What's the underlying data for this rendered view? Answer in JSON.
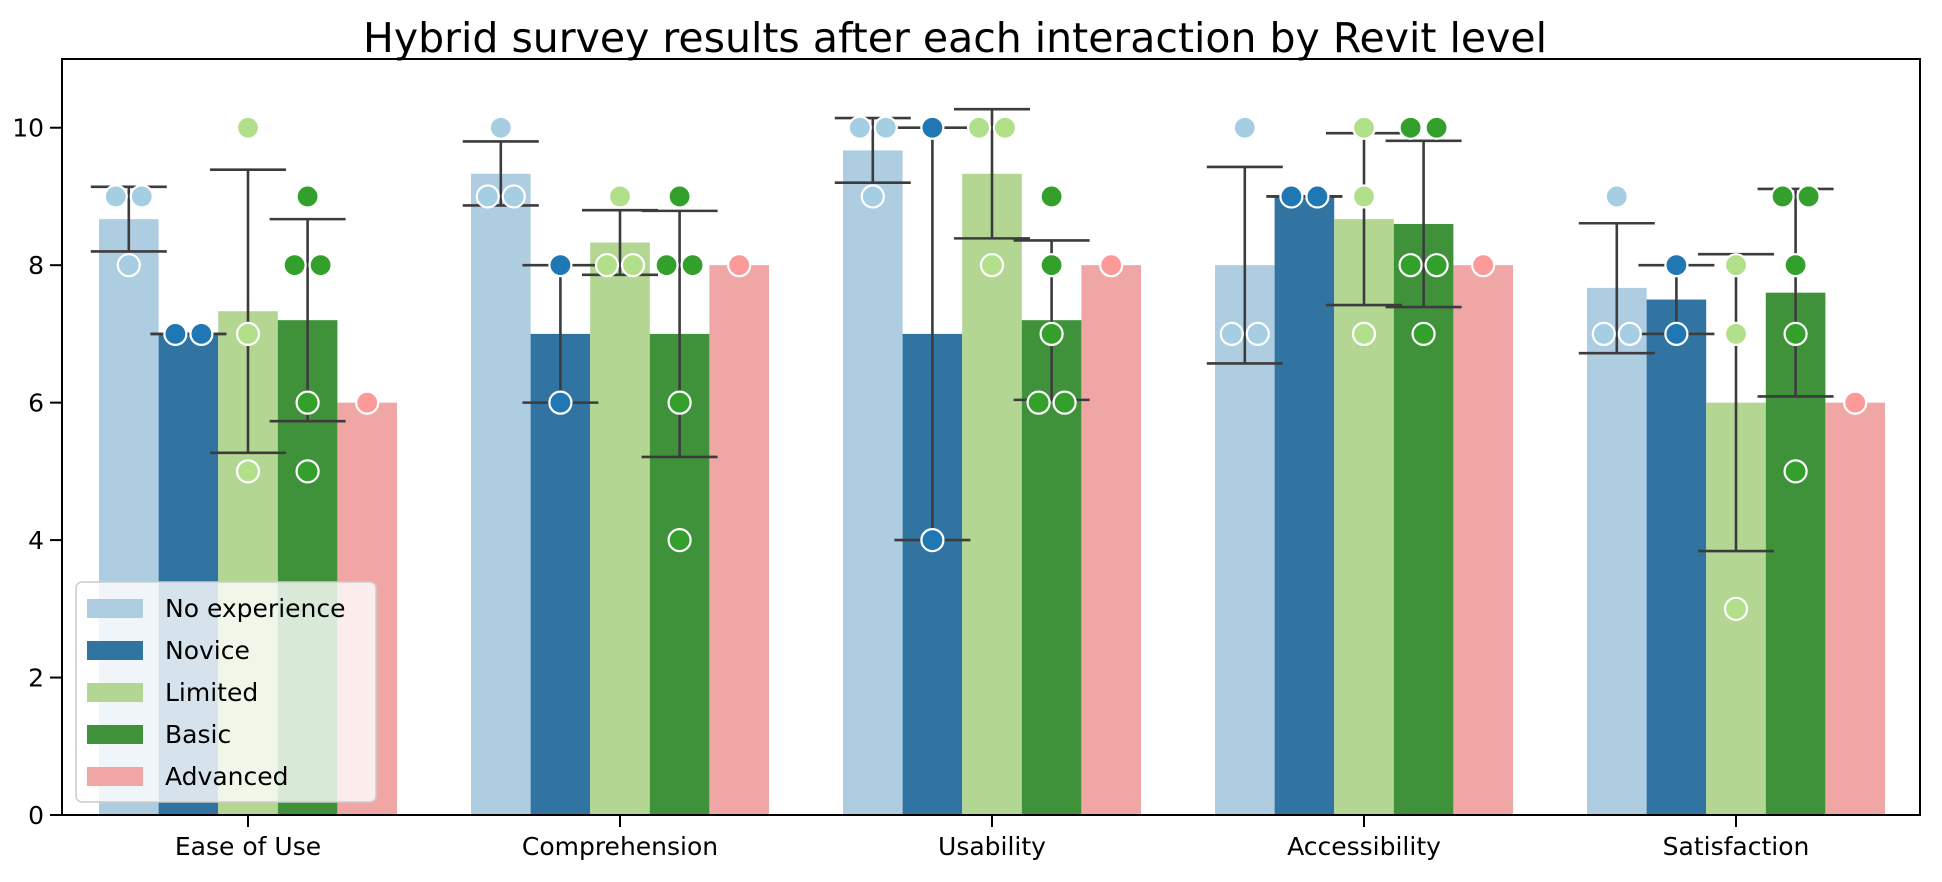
{
  "chart_data": {
    "type": "bar",
    "title": "Hybrid survey results after each interaction by Revit level",
    "xlabel": "",
    "ylabel": "",
    "ylim": [
      0,
      11
    ],
    "yticks": [
      0,
      2,
      4,
      6,
      8,
      10
    ],
    "categories": [
      "Ease of Use",
      "Comprehension",
      "Usability",
      "Accessibility",
      "Satisfaction"
    ],
    "legend_position": "lower-left",
    "series": [
      {
        "name": "No experience",
        "color": "#aecde1",
        "point_color": "#a6cee3",
        "values": [
          8.67,
          9.33,
          9.67,
          8.0,
          7.67
        ],
        "error_low": [
          8.2,
          8.87,
          9.2,
          6.57,
          6.72
        ],
        "error_high": [
          9.14,
          9.8,
          10.14,
          9.43,
          8.61
        ],
        "points": [
          [
            9,
            9,
            8
          ],
          [
            9,
            9,
            10
          ],
          [
            10,
            10,
            9
          ],
          [
            7,
            7,
            10
          ],
          [
            7,
            7,
            9
          ]
        ]
      },
      {
        "name": "Novice",
        "color": "#3274a1",
        "point_color": "#1f78b4",
        "values": [
          7.0,
          7.0,
          7.0,
          9.0,
          7.5
        ],
        "error_low": [
          7.0,
          6.0,
          4.0,
          9.0,
          7.0
        ],
        "error_high": [
          7.0,
          8.0,
          10.0,
          9.0,
          8.0
        ],
        "points": [
          [
            7,
            7
          ],
          [
            8,
            6
          ],
          [
            10,
            4
          ],
          [
            9,
            9
          ],
          [
            8,
            7
          ]
        ]
      },
      {
        "name": "Limited",
        "color": "#b3d693",
        "point_color": "#b2df8a",
        "values": [
          7.33,
          8.33,
          9.33,
          8.67,
          6.0
        ],
        "error_low": [
          5.27,
          7.86,
          8.39,
          7.42,
          3.84
        ],
        "error_high": [
          9.39,
          8.8,
          10.27,
          9.92,
          8.16
        ],
        "points": [
          [
            10,
            7,
            5
          ],
          [
            8,
            8,
            9
          ],
          [
            10,
            10,
            8
          ],
          [
            9,
            10,
            7
          ],
          [
            8,
            7,
            3
          ]
        ]
      },
      {
        "name": "Basic",
        "color": "#3f923a",
        "point_color": "#33a02c",
        "values": [
          7.2,
          7.0,
          7.2,
          8.6,
          7.6
        ],
        "error_low": [
          5.73,
          5.21,
          6.04,
          7.39,
          6.09
        ],
        "error_high": [
          8.67,
          8.79,
          8.36,
          9.81,
          9.11
        ],
        "points": [
          [
            8,
            8,
            9,
            6,
            5
          ],
          [
            8,
            8,
            9,
            6,
            4
          ],
          [
            6,
            6,
            9,
            8,
            7
          ],
          [
            8,
            8,
            10,
            10,
            7
          ],
          [
            9,
            9,
            8,
            7,
            5
          ]
        ]
      },
      {
        "name": "Advanced",
        "color": "#f0a6a5",
        "point_color": "#fb9a99",
        "values": [
          6.0,
          8.0,
          8.0,
          8.0,
          6.0
        ],
        "points": [
          [
            6
          ],
          [
            8
          ],
          [
            8
          ],
          [
            8
          ],
          [
            6
          ]
        ]
      }
    ]
  }
}
